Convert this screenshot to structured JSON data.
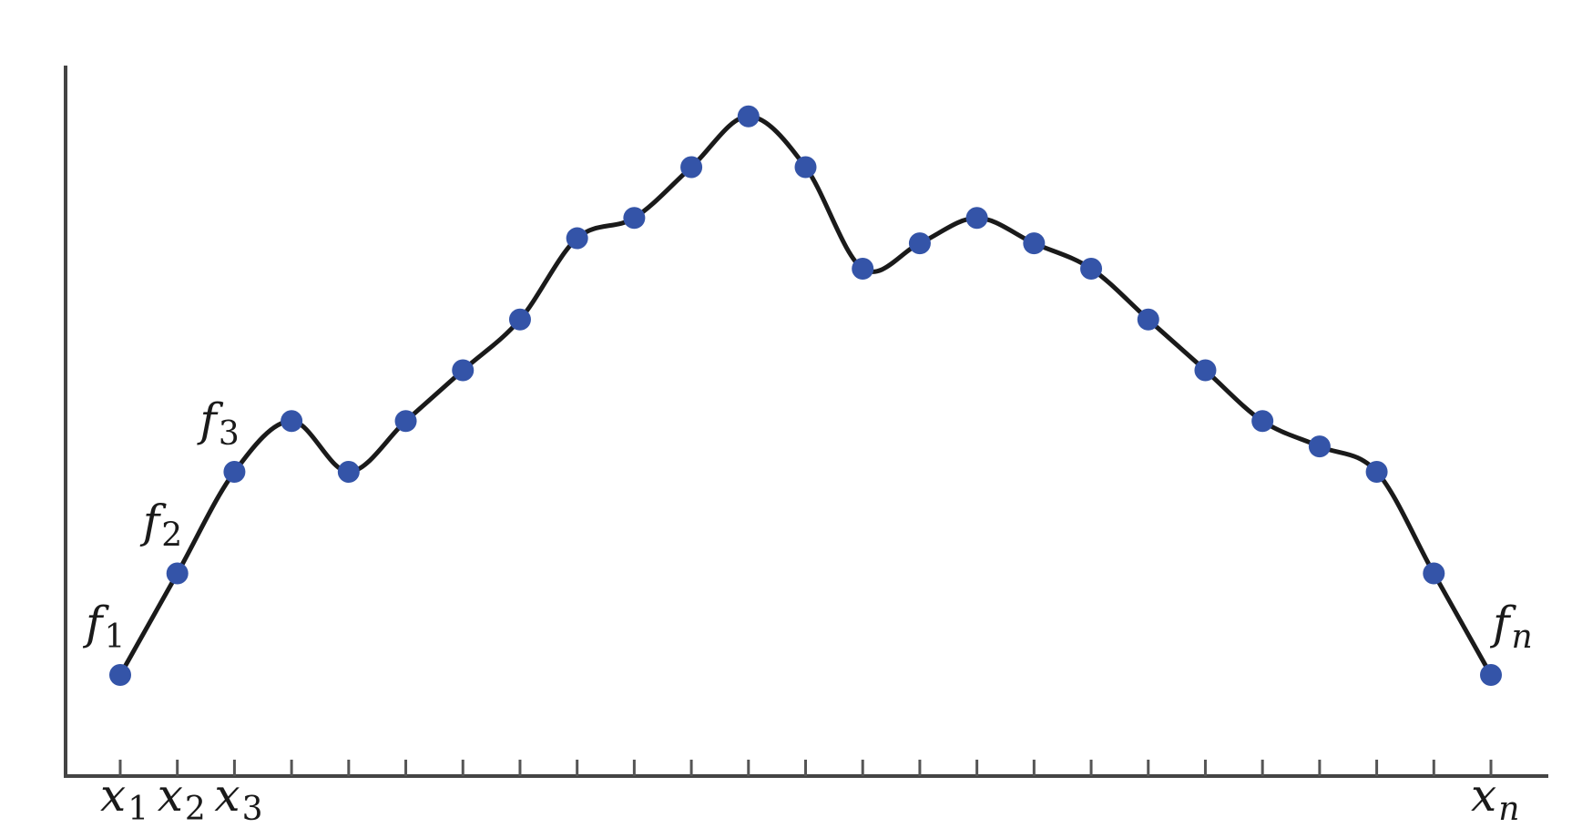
{
  "chart_data": {
    "type": "line",
    "grid": false,
    "colors": {
      "curve": "#1a1a1a",
      "points": "#3454a8",
      "axis": "#444444"
    },
    "x": [
      1,
      2,
      3,
      4,
      5,
      6,
      7,
      8,
      9,
      10,
      11,
      12,
      13,
      14,
      15,
      16,
      17,
      18,
      19,
      20,
      21,
      22,
      23,
      24,
      25
    ],
    "values": [
      1,
      2,
      3,
      3.5,
      3,
      3.5,
      4,
      4.5,
      5.3,
      5.5,
      6,
      6.5,
      6,
      5,
      5.25,
      5.5,
      5.25,
      5,
      4.5,
      4,
      3.5,
      3.25,
      3,
      2,
      1
    ],
    "point_labels": [
      {
        "index": 0,
        "symbol": "f",
        "sub": "1",
        "sub_italic": false
      },
      {
        "index": 1,
        "symbol": "f",
        "sub": "2",
        "sub_italic": false
      },
      {
        "index": 2,
        "symbol": "f",
        "sub": "3",
        "sub_italic": false
      },
      {
        "index": 24,
        "symbol": "f",
        "sub": "n",
        "sub_italic": true
      }
    ],
    "tick_labels": [
      {
        "index": 0,
        "symbol": "x",
        "sub": "1",
        "sub_italic": false
      },
      {
        "index": 1,
        "symbol": "x",
        "sub": "2",
        "sub_italic": false
      },
      {
        "index": 2,
        "symbol": "x",
        "sub": "3",
        "sub_italic": false
      },
      {
        "index": 24,
        "symbol": "x",
        "sub": "n",
        "sub_italic": true
      }
    ]
  }
}
